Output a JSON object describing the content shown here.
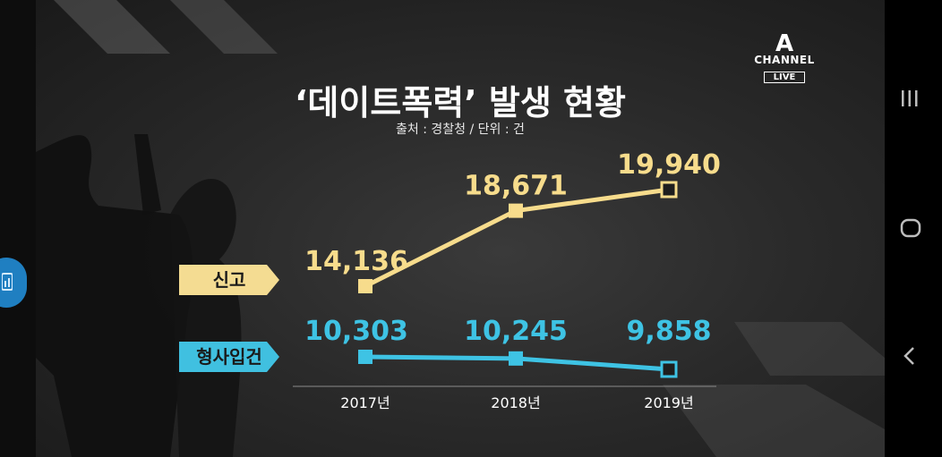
{
  "broadcast": {
    "logo_mark": "A",
    "channel": "CHANNEL",
    "live": "LIVE"
  },
  "chart_data": {
    "type": "line",
    "title": "‘데이트폭력’ 발생 현황",
    "subtitle": "출처 : 경찰청 / 단위 : 건",
    "categories": [
      "2017년",
      "2018년",
      "2019년"
    ],
    "series": [
      {
        "name": "신고",
        "values": [
          14136,
          18671,
          19940
        ],
        "labels": [
          "14,136",
          "18,671",
          "19,940"
        ],
        "color": "#f7dc8c"
      },
      {
        "name": "형사입건",
        "values": [
          10303,
          10245,
          9858
        ],
        "labels": [
          "10,303",
          "10,245",
          "9,858"
        ],
        "color": "#3ec3e4"
      }
    ]
  },
  "colors": {
    "report": "#f7dc8c",
    "criminal": "#3ec3e4",
    "tag_report": "#f4dc92",
    "tag_criminal": "#40c0e0"
  },
  "icons": [
    "recent-apps-icon",
    "home-icon",
    "back-icon",
    "floating-app-icon"
  ]
}
